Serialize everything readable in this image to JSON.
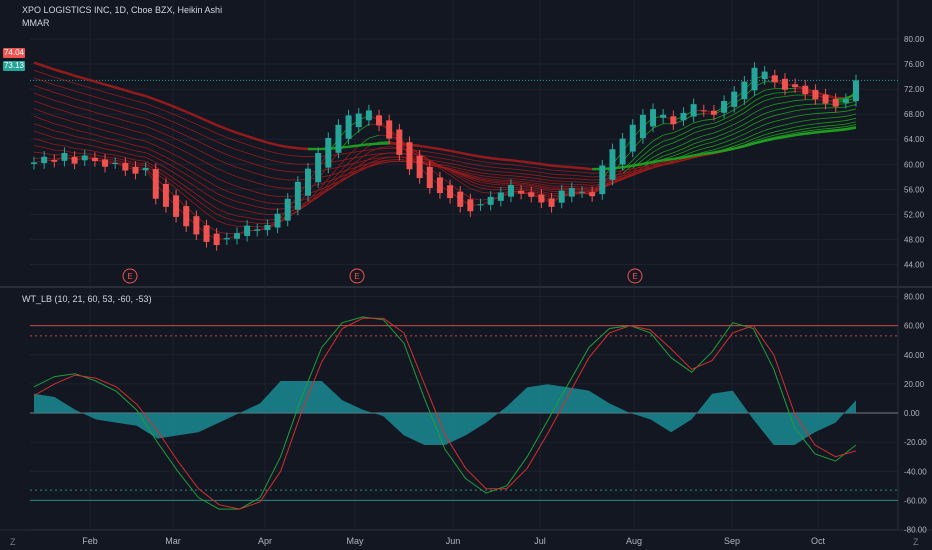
{
  "header": {
    "title": "XPO LOGISTICS INC, 1D, Cboe BZX, Heikin Ashi",
    "indicator_main": "MMAR",
    "indicator_lower": "WT_LB (10, 21, 60, 53, -60, -53)"
  },
  "price_tags": [
    {
      "label": "74.04",
      "color": "#ef5350"
    },
    {
      "label": "73.13",
      "color": "#26a69a"
    }
  ],
  "corner_labels": {
    "left": "Z",
    "right": "Z"
  },
  "chart_data": [
    {
      "type": "candlestick",
      "title": "XPO LOGISTICS INC, 1D, Cboe BZX, Heikin Ashi",
      "ylim": [
        43,
        81
      ],
      "yticks": [
        44,
        48,
        52,
        56,
        60,
        64,
        68,
        72,
        76,
        80
      ],
      "ytick_labels": [
        "44.00",
        "48.00",
        "52.00",
        "56.00",
        "60.00",
        "64.00",
        "68.00",
        "72.00",
        "76.00",
        "80.00"
      ],
      "x_months": [
        "Feb",
        "Mar",
        "Apr",
        "May",
        "Jun",
        "Jul",
        "Aug",
        "Sep",
        "Oct"
      ],
      "closes": [
        60.3,
        61.2,
        60.4,
        61.8,
        60.1,
        61.4,
        60.5,
        59.6,
        60.2,
        59.0,
        58.5,
        59.4,
        54.5,
        53.2,
        51.6,
        50.1,
        48.8,
        47.6,
        47.1,
        48.2,
        49.0,
        50.2,
        49.6,
        50.3,
        52.1,
        54.5,
        57.2,
        59.3,
        61.8,
        64.2,
        66.3,
        67.8,
        68.1,
        68.6,
        66.2,
        64.1,
        61.5,
        59.2,
        57.8,
        56.2,
        55.4,
        54.6,
        53.2,
        52.5,
        53.6,
        54.8,
        55.5,
        56.7,
        55.3,
        54.8,
        53.9,
        53.2,
        55.8,
        56.2,
        55.6,
        54.9,
        59.8,
        62.4,
        64.1,
        66.3,
        67.9,
        68.8,
        67.9,
        66.4,
        68.2,
        69.6,
        68.5,
        67.9,
        70.1,
        71.6,
        73.2,
        75.4,
        74.8,
        73.1,
        71.9,
        72.3,
        71.2,
        70.4,
        69.7,
        69.2,
        70.4,
        73.4
      ],
      "series": [
        {
          "name": "MMAR",
          "values": []
        }
      ],
      "event_markers": [
        "E",
        "E",
        "E"
      ]
    },
    {
      "type": "line",
      "title": "WT_LB (10, 21, 60, 53, -60, -53)",
      "ylim": [
        -80,
        80
      ],
      "yticks": [
        -80,
        -60,
        -40,
        -20,
        0,
        20,
        40,
        60,
        80
      ],
      "ytick_labels": [
        "-80.00",
        "-60.00",
        "-40.00",
        "-20.00",
        "0.00",
        "20.00",
        "40.00",
        "60.00",
        "80.00"
      ],
      "levels": [
        60,
        53,
        -53,
        -60
      ],
      "wt1": [
        18,
        25,
        27,
        22,
        15,
        2,
        -20,
        -40,
        -58,
        -66,
        -66,
        -58,
        -30,
        10,
        45,
        62,
        66,
        64,
        48,
        10,
        -25,
        -45,
        -55,
        -50,
        -30,
        -5,
        20,
        45,
        58,
        60,
        55,
        38,
        28,
        42,
        62,
        58,
        30,
        -10,
        -28,
        -33,
        -22
      ],
      "wt2": [
        12,
        20,
        26,
        24,
        18,
        6,
        -12,
        -33,
        -52,
        -63,
        -66,
        -61,
        -40,
        0,
        35,
        58,
        65,
        65,
        55,
        20,
        -15,
        -38,
        -52,
        -52,
        -38,
        -14,
        12,
        38,
        55,
        60,
        57,
        44,
        30,
        36,
        55,
        60,
        40,
        0,
        -22,
        -30,
        -26
      ]
    }
  ]
}
